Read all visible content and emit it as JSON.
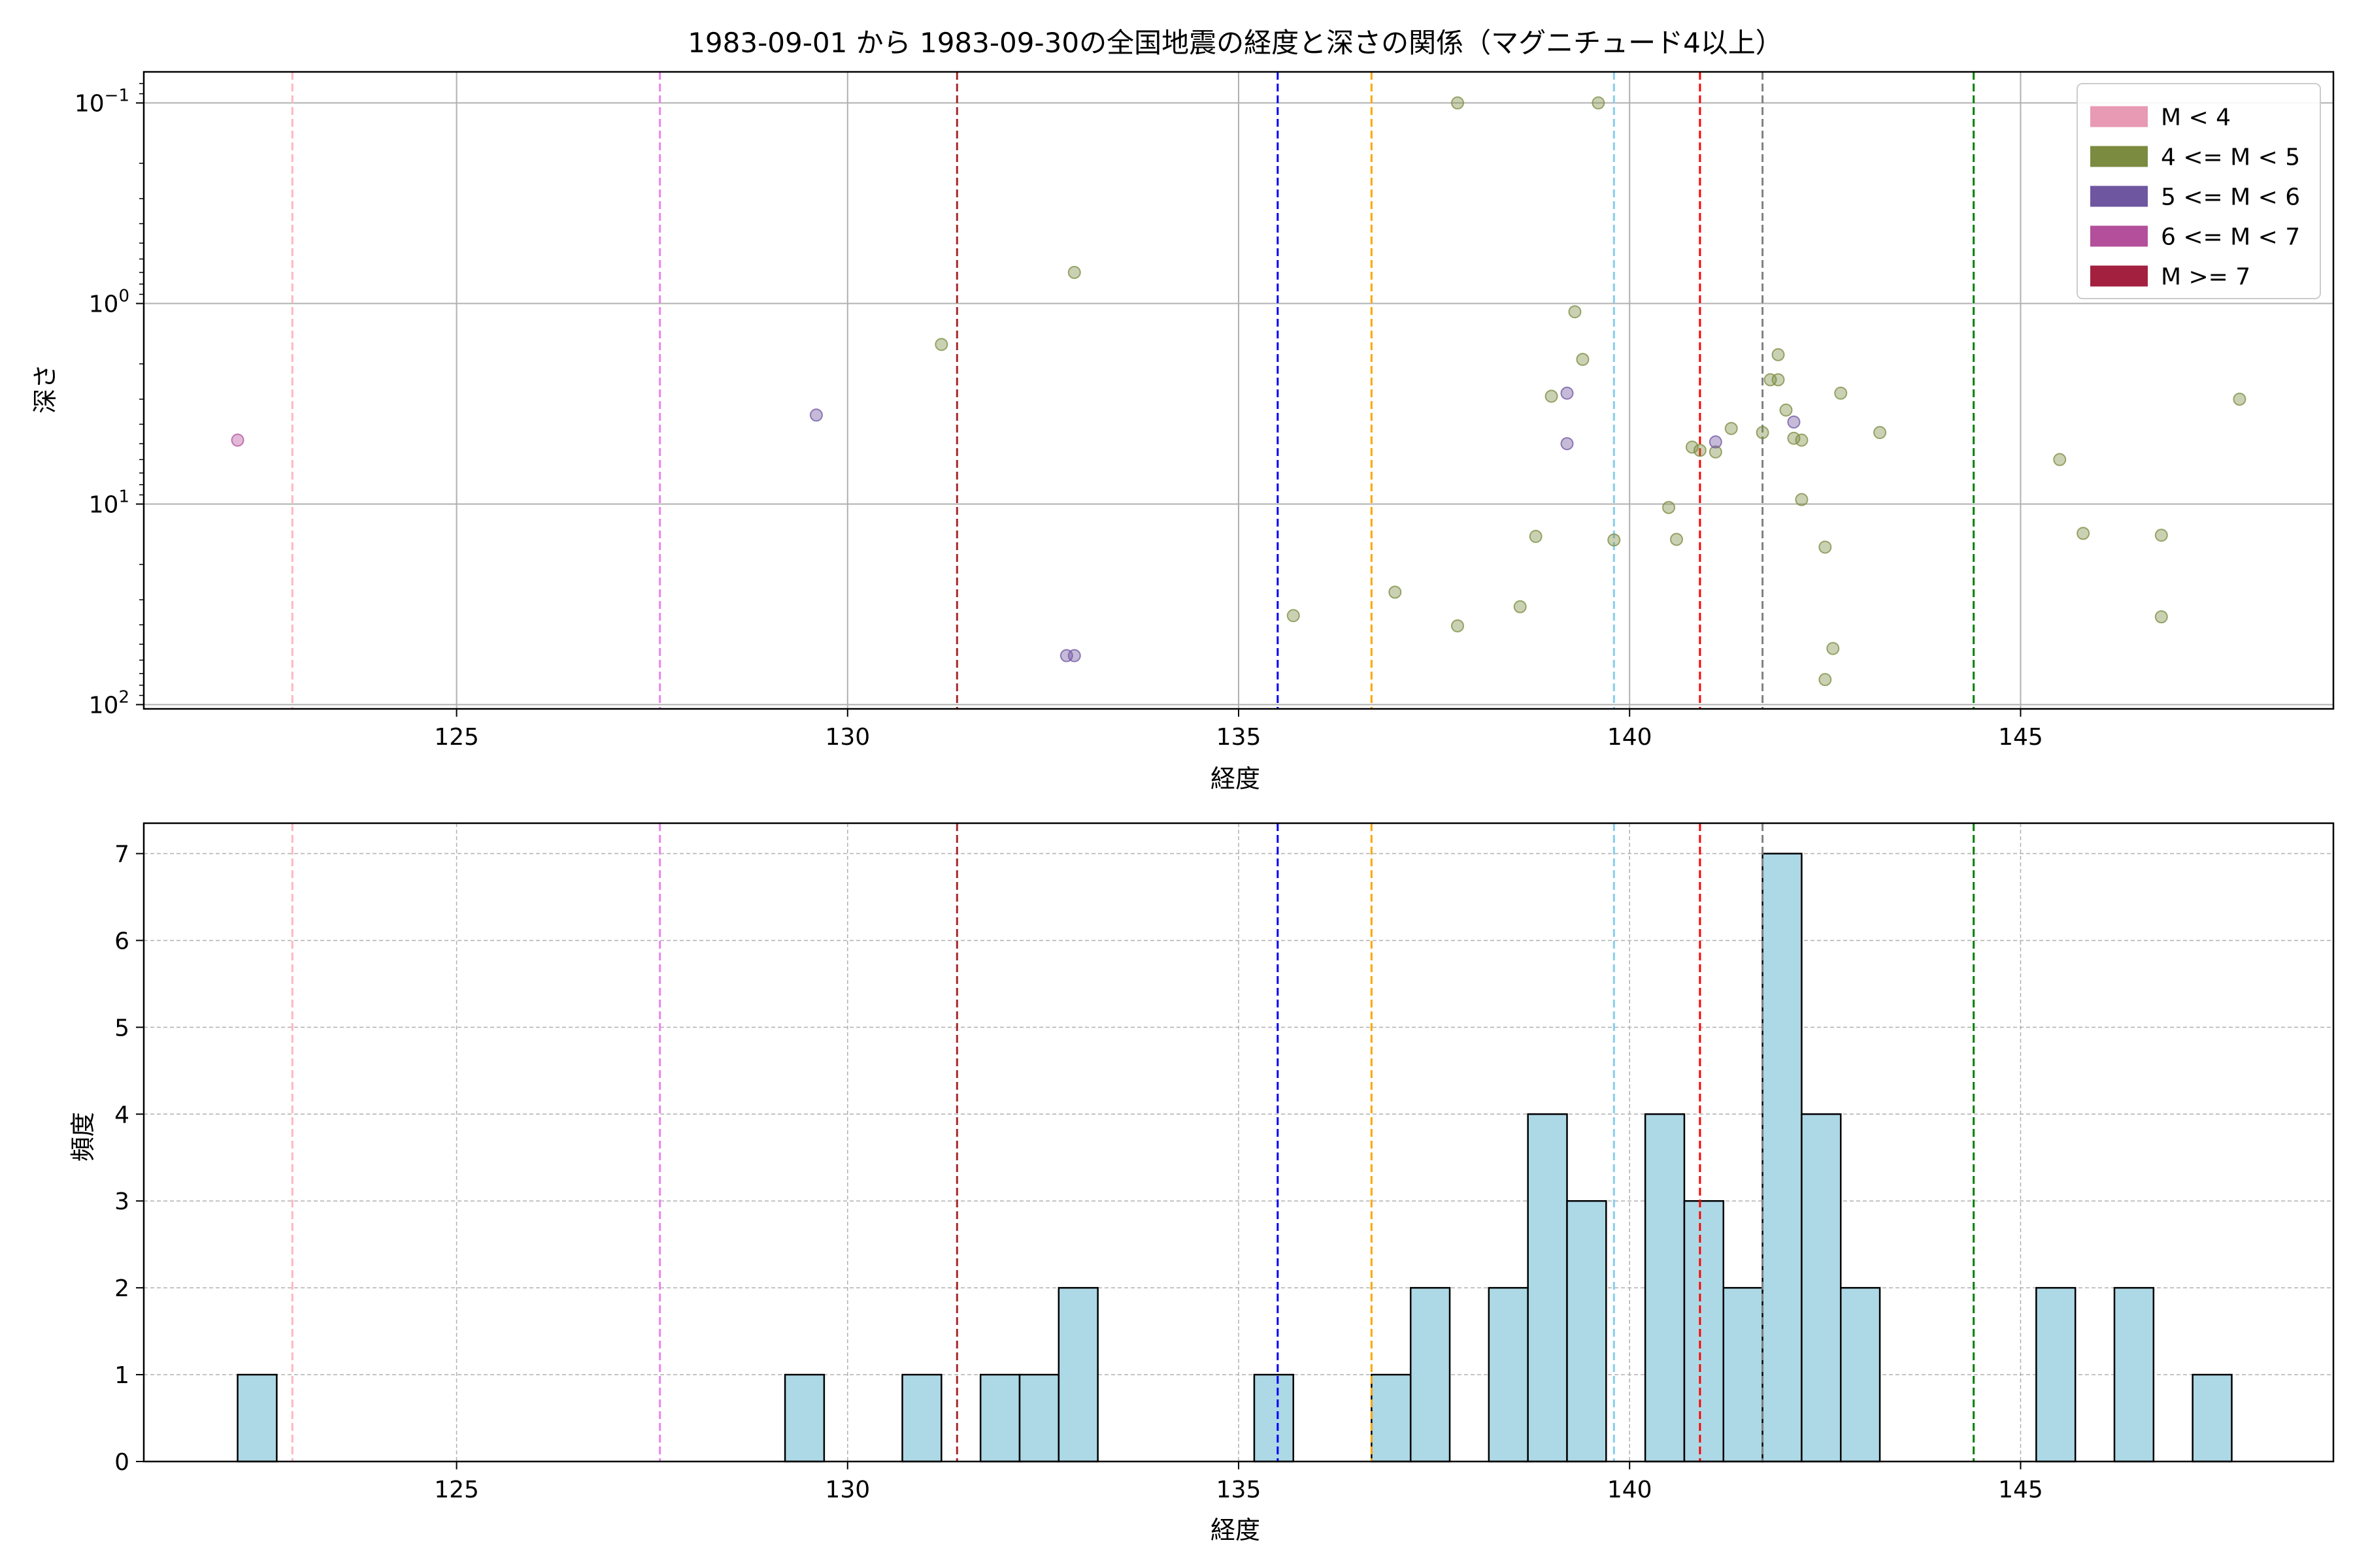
{
  "figure": {
    "title": "1983-09-01 から 1983-09-30の全国地震の経度と深さの関係（マグニチュード4以上）"
  },
  "chart_data": [
    {
      "type": "scatter",
      "xlabel": "経度",
      "ylabel": "深さ",
      "xlim": [
        121,
        149
      ],
      "ylim": [
        0.07,
        105
      ],
      "y_scale": "log",
      "y_inverted": true,
      "x_ticks": [
        125,
        130,
        135,
        140,
        145
      ],
      "y_ticks": [
        {
          "value": 0.1,
          "base": "10",
          "exp": "−1"
        },
        {
          "value": 1,
          "base": "10",
          "exp": "0"
        },
        {
          "value": 10,
          "base": "10",
          "exp": "1"
        },
        {
          "value": 100,
          "base": "10",
          "exp": "2"
        }
      ],
      "grid": true,
      "legend_position": "top-right",
      "legend": [
        {
          "label": "M < 4",
          "color": "#e899b4"
        },
        {
          "label": "4 <= M < 5",
          "color": "#7b8b40"
        },
        {
          "label": "5 <= M < 6",
          "color": "#6f56a0"
        },
        {
          "label": "6 <= M < 7",
          "color": "#b44f9c"
        },
        {
          "label": "M >= 7",
          "color": "#a3203e"
        }
      ],
      "vlines": [
        {
          "x": 122.9,
          "color": "#ffb6c1"
        },
        {
          "x": 127.6,
          "color": "#ee82ee"
        },
        {
          "x": 131.4,
          "color": "#a52a2a"
        },
        {
          "x": 135.5,
          "color": "#0000ff"
        },
        {
          "x": 136.7,
          "color": "#ffa500"
        },
        {
          "x": 139.8,
          "color": "#87ceeb"
        },
        {
          "x": 140.9,
          "color": "#ff0000"
        },
        {
          "x": 141.7,
          "color": "#808080"
        },
        {
          "x": 144.4,
          "color": "#008000"
        }
      ],
      "series": [
        {
          "name": "4 <= M < 5",
          "color": "#7b8b40",
          "points": [
            [
              137.8,
              0.1
            ],
            [
              139.6,
              0.1
            ],
            [
              132.9,
              0.7
            ],
            [
              131.2,
              1.6
            ],
            [
              139.3,
              1.1
            ],
            [
              139.4,
              1.9
            ],
            [
              141.9,
              1.8
            ],
            [
              141.8,
              2.4
            ],
            [
              141.9,
              2.4
            ],
            [
              139.0,
              2.9
            ],
            [
              142.7,
              2.8
            ],
            [
              147.8,
              3.0
            ],
            [
              142.0,
              3.4
            ],
            [
              141.7,
              4.4
            ],
            [
              141.3,
              4.2
            ],
            [
              142.1,
              4.7
            ],
            [
              142.2,
              4.8
            ],
            [
              143.2,
              4.4
            ],
            [
              140.8,
              5.2
            ],
            [
              140.9,
              5.4
            ],
            [
              141.1,
              5.5
            ],
            [
              145.5,
              6.0
            ],
            [
              142.2,
              9.5
            ],
            [
              140.5,
              10.4
            ],
            [
              145.8,
              14.0
            ],
            [
              146.8,
              14.3
            ],
            [
              138.8,
              14.5
            ],
            [
              140.6,
              15.0
            ],
            [
              139.8,
              15.1
            ],
            [
              142.5,
              16.4
            ],
            [
              137.0,
              27.5
            ],
            [
              138.6,
              32.5
            ],
            [
              146.8,
              36.5
            ],
            [
              135.7,
              36.0
            ],
            [
              137.8,
              40.5
            ],
            [
              142.6,
              52.5
            ],
            [
              142.5,
              75.0
            ]
          ]
        },
        {
          "name": "5 <= M < 6",
          "color": "#6f56a0",
          "points": [
            [
              129.6,
              3.6
            ],
            [
              139.2,
              2.8
            ],
            [
              139.2,
              5.0
            ],
            [
              142.1,
              3.9
            ],
            [
              141.1,
              4.9
            ],
            [
              132.8,
              57.0
            ],
            [
              132.9,
              57.0
            ]
          ]
        },
        {
          "name": "6 <= M < 7",
          "color": "#b44f9c",
          "points": [
            [
              122.2,
              4.8
            ]
          ]
        }
      ]
    },
    {
      "type": "bar",
      "xlabel": "経度",
      "ylabel": "頻度",
      "xlim": [
        121,
        149
      ],
      "ylim": [
        0,
        7.35
      ],
      "x_ticks": [
        125,
        130,
        135,
        140,
        145
      ],
      "y_ticks": [
        0,
        1,
        2,
        3,
        4,
        5,
        6,
        7
      ],
      "grid": true,
      "bar_color": "#add8e6",
      "bin_width": 0.5,
      "bins": [
        {
          "x": 122.2,
          "count": 1
        },
        {
          "x": 129.2,
          "count": 1
        },
        {
          "x": 130.7,
          "count": 1
        },
        {
          "x": 131.7,
          "count": 1
        },
        {
          "x": 132.2,
          "count": 1
        },
        {
          "x": 132.7,
          "count": 2
        },
        {
          "x": 135.2,
          "count": 1
        },
        {
          "x": 136.7,
          "count": 1
        },
        {
          "x": 137.2,
          "count": 2
        },
        {
          "x": 138.2,
          "count": 2
        },
        {
          "x": 138.7,
          "count": 4
        },
        {
          "x": 139.2,
          "count": 3
        },
        {
          "x": 140.2,
          "count": 4
        },
        {
          "x": 140.7,
          "count": 3
        },
        {
          "x": 141.2,
          "count": 2
        },
        {
          "x": 141.7,
          "count": 7
        },
        {
          "x": 142.2,
          "count": 4
        },
        {
          "x": 142.7,
          "count": 2
        },
        {
          "x": 145.2,
          "count": 2
        },
        {
          "x": 146.2,
          "count": 2
        },
        {
          "x": 147.2,
          "count": 1
        }
      ],
      "vlines": [
        {
          "x": 122.9,
          "color": "#ffb6c1"
        },
        {
          "x": 127.6,
          "color": "#ee82ee"
        },
        {
          "x": 131.4,
          "color": "#a52a2a"
        },
        {
          "x": 135.5,
          "color": "#0000ff"
        },
        {
          "x": 136.7,
          "color": "#ffa500"
        },
        {
          "x": 139.8,
          "color": "#87ceeb"
        },
        {
          "x": 140.9,
          "color": "#ff0000"
        },
        {
          "x": 141.7,
          "color": "#808080"
        },
        {
          "x": 144.4,
          "color": "#008000"
        }
      ]
    }
  ]
}
